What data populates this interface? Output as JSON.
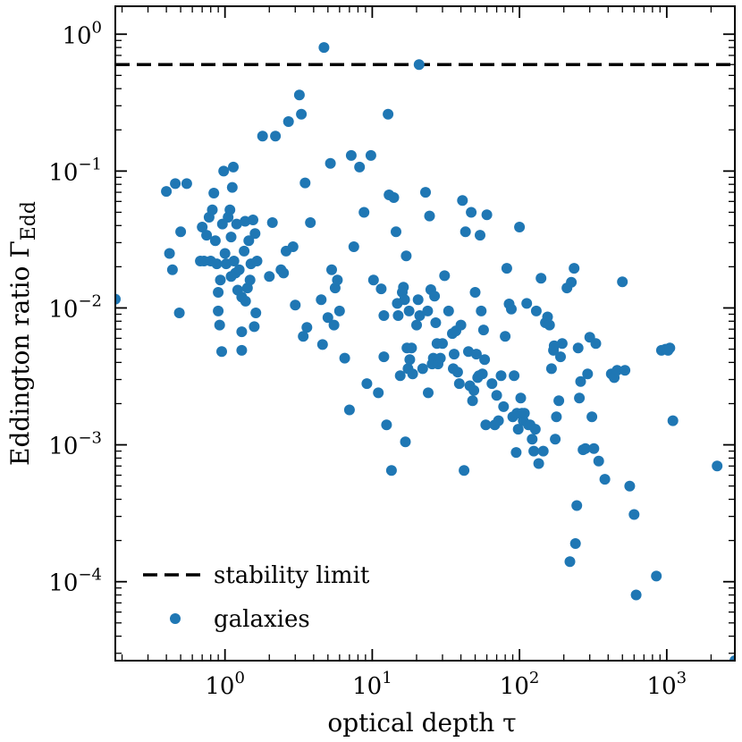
{
  "chart_data": {
    "type": "scatter",
    "xscale": "log",
    "yscale": "log",
    "xlim": [
      0.18,
      2900
    ],
    "ylim": [
      2.65e-05,
      1.6
    ],
    "xlabel": "optical depth τ",
    "ylabel_base": "Eddington ratio Γ",
    "ylabel_sub": "Edd",
    "x_ticks": [
      {
        "base": "10",
        "exp": "0",
        "value": 1
      },
      {
        "base": "10",
        "exp": "1",
        "value": 10
      },
      {
        "base": "10",
        "exp": "2",
        "value": 100
      },
      {
        "base": "10",
        "exp": "3",
        "value": 1000
      }
    ],
    "y_ticks": [
      {
        "base": "10",
        "exp": "0",
        "value": 1
      },
      {
        "base": "10",
        "exp": "−1",
        "value": 0.1
      },
      {
        "base": "10",
        "exp": "−2",
        "value": 0.01
      },
      {
        "base": "10",
        "exp": "−3",
        "value": 0.001
      },
      {
        "base": "10",
        "exp": "−4",
        "value": 0.0001
      }
    ],
    "colors": {
      "points": "#1f77b4",
      "limit": "#000000"
    },
    "series": [
      {
        "name": "galaxies",
        "points": [
          [
            0.18,
            0.0116
          ],
          [
            0.4,
            0.071
          ],
          [
            0.42,
            0.025
          ],
          [
            0.44,
            0.019
          ],
          [
            0.46,
            0.081
          ],
          [
            0.49,
            0.0092
          ],
          [
            0.5,
            0.036
          ],
          [
            0.55,
            0.081
          ],
          [
            0.68,
            0.022
          ],
          [
            0.7,
            0.039
          ],
          [
            0.72,
            0.022
          ],
          [
            0.75,
            0.034
          ],
          [
            0.78,
            0.046
          ],
          [
            0.8,
            0.022
          ],
          [
            0.82,
            0.052
          ],
          [
            0.84,
            0.069
          ],
          [
            0.86,
            0.031
          ],
          [
            0.88,
            0.021
          ],
          [
            0.9,
            0.013
          ],
          [
            0.9,
            0.0095
          ],
          [
            0.92,
            0.0075
          ],
          [
            0.93,
            0.016
          ],
          [
            0.95,
            0.0048
          ],
          [
            0.96,
            0.041
          ],
          [
            0.98,
            0.1
          ],
          [
            1.0,
            0.025
          ],
          [
            1.02,
            0.021
          ],
          [
            1.05,
            0.046
          ],
          [
            1.08,
            0.052
          ],
          [
            1.1,
            0.017
          ],
          [
            1.1,
            0.033
          ],
          [
            1.12,
            0.076
          ],
          [
            1.14,
            0.107
          ],
          [
            1.15,
            0.022
          ],
          [
            1.18,
            0.018
          ],
          [
            1.2,
            0.041
          ],
          [
            1.22,
            0.0135
          ],
          [
            1.25,
            0.019
          ],
          [
            1.3,
            0.0067
          ],
          [
            1.3,
            0.012
          ],
          [
            1.3,
            0.0049
          ],
          [
            1.35,
            0.026
          ],
          [
            1.37,
            0.043
          ],
          [
            1.38,
            0.0112
          ],
          [
            1.42,
            0.014
          ],
          [
            1.45,
            0.031
          ],
          [
            1.48,
            0.016
          ],
          [
            1.5,
            0.021
          ],
          [
            1.55,
            0.044
          ],
          [
            1.58,
            0.0073
          ],
          [
            1.62,
            0.0092
          ],
          [
            1.65,
            0.022
          ],
          [
            1.6,
            0.035
          ],
          [
            1.8,
            0.18
          ],
          [
            2.0,
            0.017
          ],
          [
            2.1,
            0.042
          ],
          [
            2.2,
            0.18
          ],
          [
            2.4,
            0.019
          ],
          [
            2.5,
            0.018
          ],
          [
            2.6,
            0.026
          ],
          [
            2.7,
            0.23
          ],
          [
            2.9,
            0.028
          ],
          [
            3.0,
            0.0105
          ],
          [
            3.2,
            0.36
          ],
          [
            3.3,
            0.26
          ],
          [
            3.5,
            0.082
          ],
          [
            3.4,
            0.0062
          ],
          [
            3.6,
            0.0072
          ],
          [
            3.8,
            0.042
          ],
          [
            4.5,
            0.0115
          ],
          [
            4.6,
            0.0054
          ],
          [
            4.7,
            0.8
          ],
          [
            5.0,
            0.0085
          ],
          [
            5.2,
            0.114
          ],
          [
            5.3,
            0.019
          ],
          [
            5.5,
            0.0075
          ],
          [
            5.6,
            0.014
          ],
          [
            5.8,
            0.016
          ],
          [
            6.0,
            0.0095
          ],
          [
            6.5,
            0.0043
          ],
          [
            7.0,
            0.0018
          ],
          [
            7.2,
            0.13
          ],
          [
            7.5,
            0.028
          ],
          [
            8.2,
            0.107
          ],
          [
            8.8,
            0.05
          ],
          [
            9.2,
            0.0028
          ],
          [
            9.8,
            0.13
          ],
          [
            10.2,
            0.016
          ],
          [
            11.0,
            0.0024
          ],
          [
            11.5,
            0.0138
          ],
          [
            12.0,
            0.0088
          ],
          [
            12.0,
            0.0044
          ],
          [
            12.5,
            0.0014
          ],
          [
            12.8,
            0.26
          ],
          [
            13.0,
            0.067
          ],
          [
            13.5,
            0.00065
          ],
          [
            14.0,
            0.064
          ],
          [
            14.5,
            0.036
          ],
          [
            14.8,
            0.0108
          ],
          [
            15.0,
            0.0088
          ],
          [
            15.5,
            0.0032
          ],
          [
            16.0,
            0.013
          ],
          [
            16.3,
            0.0142
          ],
          [
            16.6,
            0.0115
          ],
          [
            16.8,
            0.00105
          ],
          [
            17.0,
            0.024
          ],
          [
            17.2,
            0.0051
          ],
          [
            17.5,
            0.0036
          ],
          [
            17.8,
            0.0095
          ],
          [
            18.0,
            0.0042
          ],
          [
            18.5,
            0.0051
          ],
          [
            18.8,
            0.0033
          ],
          [
            20.0,
            0.0075
          ],
          [
            20.5,
            0.0115
          ],
          [
            20.8,
            0.6
          ],
          [
            21.0,
            0.0088
          ],
          [
            22.0,
            0.0036
          ],
          [
            23.0,
            0.07
          ],
          [
            23.8,
            0.0095
          ],
          [
            24.0,
            0.0024
          ],
          [
            24.5,
            0.047
          ],
          [
            25.0,
            0.0136
          ],
          [
            25.5,
            0.0039
          ],
          [
            26.0,
            0.0043
          ],
          [
            26.5,
            0.0122
          ],
          [
            27.0,
            0.0078
          ],
          [
            27.5,
            0.0055
          ],
          [
            28.0,
            0.0039
          ],
          [
            29.0,
            0.0043
          ],
          [
            30.0,
            0.0055
          ],
          [
            31.0,
            0.0172
          ],
          [
            33.0,
            0.0095
          ],
          [
            35.0,
            0.0065
          ],
          [
            35.5,
            0.0036
          ],
          [
            36.0,
            0.0046
          ],
          [
            37.0,
            0.0068
          ],
          [
            38.0,
            0.0034
          ],
          [
            39.0,
            0.0028
          ],
          [
            40.0,
            0.0075
          ],
          [
            41.0,
            0.061
          ],
          [
            42.0,
            0.00065
          ],
          [
            43.0,
            0.036
          ],
          [
            45.0,
            0.0048
          ],
          [
            46.0,
            0.0027
          ],
          [
            47.0,
            0.05
          ],
          [
            48.0,
            0.0021
          ],
          [
            49.0,
            0.0025
          ],
          [
            50.0,
            0.013
          ],
          [
            51.0,
            0.0046
          ],
          [
            52.0,
            0.0031
          ],
          [
            53.0,
            0.0032
          ],
          [
            54.0,
            0.034
          ],
          [
            55.0,
            0.0095
          ],
          [
            56.0,
            0.0033
          ],
          [
            57.0,
            0.0069
          ],
          [
            58.0,
            0.0042
          ],
          [
            59.0,
            0.0014
          ],
          [
            60.0,
            0.048
          ],
          [
            65.0,
            0.0028
          ],
          [
            68.0,
            0.0014
          ],
          [
            70.0,
            0.0023
          ],
          [
            72.0,
            0.0015
          ],
          [
            75.0,
            0.0032
          ],
          [
            78.0,
            0.0019
          ],
          [
            80.0,
            0.0062
          ],
          [
            82.0,
            0.0195
          ],
          [
            85.0,
            0.0107
          ],
          [
            88.0,
            0.0098
          ],
          [
            90.0,
            0.0016
          ],
          [
            92.0,
            0.0032
          ],
          [
            95.0,
            0.00088
          ],
          [
            96.0,
            0.0017
          ],
          [
            98.0,
            0.0013
          ],
          [
            100.0,
            0.039
          ],
          [
            102.0,
            0.0022
          ],
          [
            104.0,
            0.0017
          ],
          [
            106.0,
            0.0015
          ],
          [
            108.0,
            0.0017
          ],
          [
            112.0,
            0.0108
          ],
          [
            115.0,
            0.0014
          ],
          [
            118.0,
            0.0014
          ],
          [
            122.0,
            0.0011
          ],
          [
            125.0,
            0.0009
          ],
          [
            128.0,
            0.0013
          ],
          [
            130.0,
            0.0095
          ],
          [
            135.0,
            0.00073
          ],
          [
            140.0,
            0.0165
          ],
          [
            145.0,
            0.0009
          ],
          [
            150.0,
            0.0078
          ],
          [
            155.0,
            0.0086
          ],
          [
            160.0,
            0.0075
          ],
          [
            165.0,
            0.0036
          ],
          [
            170.0,
            0.0049
          ],
          [
            172.0,
            0.0053
          ],
          [
            175.0,
            0.0011
          ],
          [
            178.0,
            0.0016
          ],
          [
            185.0,
            0.0021
          ],
          [
            190.0,
            0.0044
          ],
          [
            195.0,
            0.0055
          ],
          [
            210.0,
            0.014
          ],
          [
            220.0,
            0.00014
          ],
          [
            225.0,
            0.0154
          ],
          [
            235.0,
            0.0195
          ],
          [
            240.0,
            0.00019
          ],
          [
            245.0,
            0.00036
          ],
          [
            250.0,
            0.0051
          ],
          [
            255.0,
            0.0022
          ],
          [
            260.0,
            0.0029
          ],
          [
            270.0,
            0.00092
          ],
          [
            280.0,
            0.00094
          ],
          [
            290.0,
            0.0033
          ],
          [
            300.0,
            0.0061
          ],
          [
            310.0,
            0.0016
          ],
          [
            320.0,
            0.00094
          ],
          [
            330.0,
            0.0055
          ],
          [
            345.0,
            0.00076
          ],
          [
            380.0,
            0.00056
          ],
          [
            420.0,
            0.0033
          ],
          [
            440.0,
            0.0031
          ],
          [
            460.0,
            0.0035
          ],
          [
            500.0,
            0.0155
          ],
          [
            520.0,
            0.0035
          ],
          [
            560.0,
            0.0005
          ],
          [
            600.0,
            0.00031
          ],
          [
            620.0,
            8e-05
          ],
          [
            850.0,
            0.00011
          ],
          [
            920.0,
            0.0049
          ],
          [
            980.0,
            0.005
          ],
          [
            1020.0,
            0.0049
          ],
          [
            1050.0,
            0.0051
          ],
          [
            1100.0,
            0.0015
          ],
          [
            2200.0,
            0.0007
          ],
          [
            2900.0,
            2.65e-05
          ]
        ]
      }
    ],
    "reference_lines": [
      {
        "name": "stability limit",
        "type": "horizontal",
        "y": 0.6,
        "style": "dashed"
      }
    ],
    "legend": {
      "position": "bottom-left",
      "entries": [
        {
          "label": "stability limit",
          "marker": "dashed-line"
        },
        {
          "label": "galaxies",
          "marker": "circle"
        }
      ]
    }
  }
}
